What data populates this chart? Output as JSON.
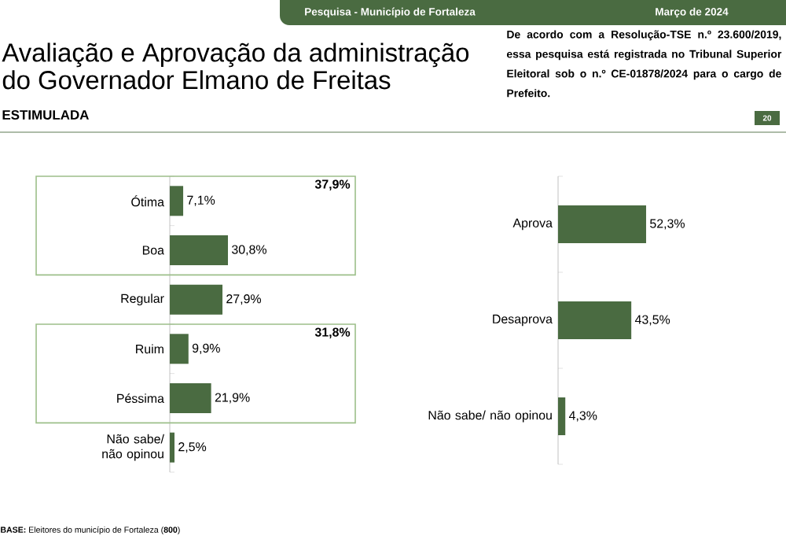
{
  "chart_data": [
    {
      "type": "bar",
      "orientation": "horizontal",
      "title": "Avaliação e Aprovação da administração do Governador Elmano de Freitas",
      "subtitle": "ESTIMULADA",
      "categories": [
        "Ótima",
        "Boa",
        "Regular",
        "Ruim",
        "Péssima",
        "Não sabe/ não opinou"
      ],
      "values": [
        7.1,
        30.8,
        27.9,
        9.9,
        21.9,
        2.5
      ],
      "value_labels": [
        "7,1%",
        "30,8%",
        "27,9%",
        "9,9%",
        "21,9%",
        "2,5%"
      ],
      "color": "#4a6b41",
      "tick_labels": "y",
      "annotations": [
        "Pesquisa - Município de Fortaleza",
        "Março de 2024",
        "De acordo com a Resolução-TSE n.º 23.600/2019, essa pesquisa está registrada no Tribunal Superior Eleitoral sob o n.º CE-01878/2024 para o cargo de Prefeito.",
        "20",
        "**BASE:** Eleitores do município de Fortaleza (**800**)",
        "37,9%",
        "31,8%"
      ]
    },
    {
      "type": "bar",
      "orientation": "horizontal",
      "categories": [
        "Aprova",
        "Desaprova",
        "Não sabe/ não opinou"
      ],
      "values": [
        52.3,
        43.5,
        4.3
      ],
      "value_labels": [
        "52,3%",
        "43,5%",
        "4,3%"
      ],
      "color": "#4a6b41",
      "tick_labels": "y"
    }
  ]
}
